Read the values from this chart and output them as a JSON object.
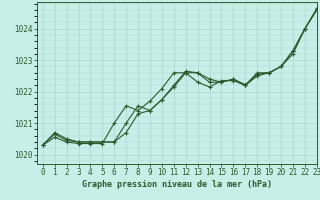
{
  "title": "Graphe pression niveau de la mer (hPa)",
  "bg_color": "#c8eee8",
  "grid_color": "#a8d8d0",
  "line_color": "#2d5a2d",
  "marker_color": "#2d5a2d",
  "xlim": [
    -0.5,
    23
  ],
  "ylim": [
    1019.7,
    1024.85
  ],
  "yticks": [
    1020,
    1021,
    1022,
    1023,
    1024
  ],
  "xticks": [
    0,
    1,
    2,
    3,
    4,
    5,
    6,
    7,
    8,
    9,
    10,
    11,
    12,
    13,
    14,
    15,
    16,
    17,
    18,
    19,
    20,
    21,
    22,
    23
  ],
  "series1_x": [
    0,
    1,
    2,
    3,
    4,
    5,
    6,
    7,
    8,
    9,
    10,
    11,
    12,
    13,
    14,
    15,
    16,
    17,
    18,
    19,
    20,
    21,
    22,
    23
  ],
  "series1_y": [
    1020.3,
    1020.65,
    1020.45,
    1020.4,
    1020.4,
    1020.4,
    1020.4,
    1020.7,
    1021.3,
    1021.4,
    1021.75,
    1022.15,
    1022.6,
    1022.6,
    1022.3,
    1022.3,
    1022.4,
    1022.2,
    1022.5,
    1022.6,
    1022.8,
    1023.3,
    1024.0,
    1024.6
  ],
  "series2_x": [
    0,
    1,
    2,
    3,
    4,
    5,
    6,
    7,
    8,
    9,
    10,
    11,
    12,
    13,
    14,
    15,
    16,
    17,
    18,
    19,
    20,
    21,
    22,
    23
  ],
  "series2_y": [
    1020.3,
    1020.7,
    1020.5,
    1020.4,
    1020.4,
    1020.4,
    1020.4,
    1021.0,
    1021.55,
    1021.4,
    1021.75,
    1022.2,
    1022.65,
    1022.6,
    1022.4,
    1022.3,
    1022.4,
    1022.22,
    1022.55,
    1022.6,
    1022.8,
    1023.3,
    1024.0,
    1024.6
  ],
  "series3_x": [
    0,
    1,
    2,
    3,
    4,
    5,
    6,
    7,
    8,
    9,
    10,
    11,
    12,
    13,
    14,
    15,
    16,
    17,
    18,
    19,
    20,
    21,
    22,
    23
  ],
  "series3_y": [
    1020.3,
    1020.55,
    1020.4,
    1020.35,
    1020.35,
    1020.35,
    1021.0,
    1021.55,
    1021.4,
    1021.7,
    1022.1,
    1022.6,
    1022.6,
    1022.3,
    1022.15,
    1022.35,
    1022.35,
    1022.2,
    1022.6,
    1022.6,
    1022.8,
    1023.2,
    1024.0,
    1024.65
  ],
  "tick_fontsize": 5.5
}
